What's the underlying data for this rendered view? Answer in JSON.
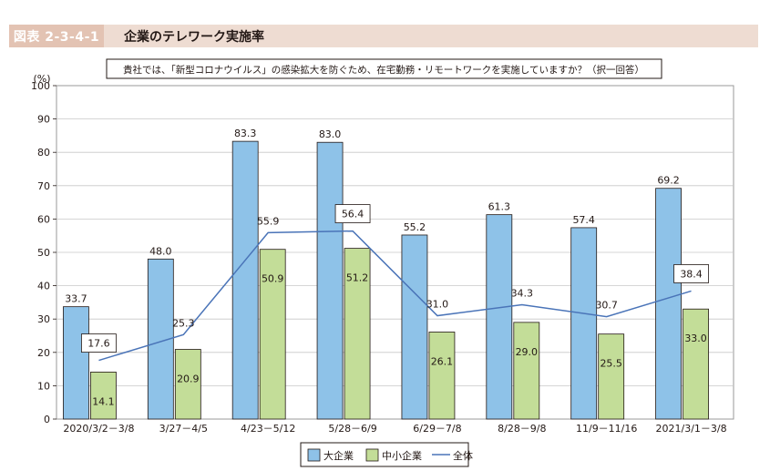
{
  "header": {
    "figure_id": "図表 2-3-4-1",
    "title": "企業のテレワーク実施率"
  },
  "chart_data": {
    "type": "bar",
    "question": "貴社では、「新型コロナウイルス」の感染拡大を防ぐため、在宅勤務・リモートワークを実施していますか？（択一回答）",
    "ylabel": "(%)",
    "ylim": [
      0,
      100
    ],
    "yticks": [
      "0",
      "10",
      "20",
      "30",
      "40",
      "50",
      "60",
      "70",
      "80",
      "90",
      "100"
    ],
    "categories": [
      "2020/3/2－3/8",
      "3/27－4/5",
      "4/23－5/12",
      "5/28－6/9",
      "6/29－7/8",
      "8/28－9/8",
      "11/9－11/16",
      "2021/3/1－3/8"
    ],
    "series": [
      {
        "name": "大企業",
        "type": "bar",
        "color": "#8ec2e8",
        "values": [
          33.7,
          48.0,
          83.3,
          83.0,
          55.2,
          61.3,
          57.4,
          69.2
        ],
        "labels": [
          "33.7",
          "48.0",
          "83.3",
          "83.0",
          "55.2",
          "61.3",
          "57.4",
          "69.2"
        ]
      },
      {
        "name": "中小企業",
        "type": "bar",
        "color": "#c3dd98",
        "values": [
          14.1,
          20.9,
          50.9,
          51.2,
          26.1,
          29.0,
          25.5,
          33.0
        ],
        "labels": [
          "14.1",
          "20.9",
          "50.9",
          "51.2",
          "26.1",
          "29.0",
          "25.5",
          "33.0"
        ]
      },
      {
        "name": "全体",
        "type": "line",
        "color": "#4a74b8",
        "values": [
          17.6,
          25.3,
          55.9,
          56.4,
          31.0,
          34.3,
          30.7,
          38.4
        ],
        "labels": [
          "17.6",
          "25.3",
          "55.9",
          "56.4",
          "31.0",
          "34.3",
          "30.7",
          "38.4"
        ]
      }
    ],
    "boxed_line_labels": [
      0,
      3,
      7
    ],
    "grid": true,
    "legend_position": "bottom-center"
  }
}
